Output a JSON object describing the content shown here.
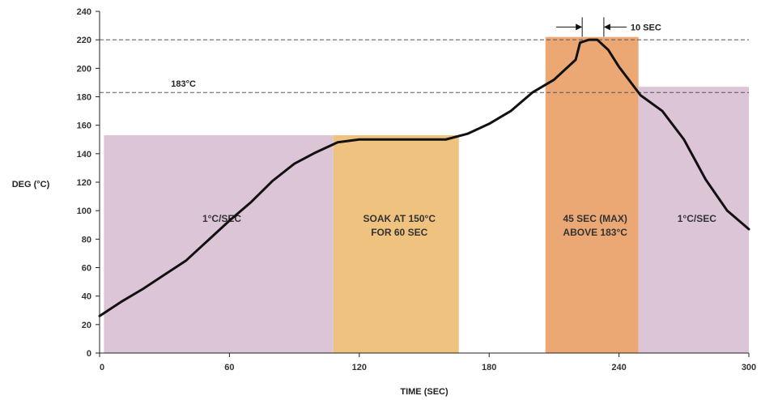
{
  "chart_data": {
    "type": "line",
    "title": "",
    "xlabel": "TIME (SEC)",
    "ylabel": "DEG (°C)",
    "xlim": [
      0,
      300
    ],
    "ylim": [
      0,
      240
    ],
    "x_ticks": [
      0,
      60,
      120,
      180,
      240,
      300
    ],
    "y_ticks": [
      0,
      20,
      40,
      60,
      80,
      100,
      120,
      140,
      160,
      180,
      200,
      220,
      240
    ],
    "grid": false,
    "legend": "none",
    "series": [
      {
        "x": [
          0,
          10,
          20,
          30,
          40,
          50,
          60,
          70,
          80,
          90,
          100,
          110,
          120,
          130,
          140,
          150,
          160,
          170,
          180,
          190,
          200,
          210,
          220,
          222,
          226,
          230,
          235,
          240,
          250,
          260,
          270,
          280,
          290,
          300
        ],
        "values": [
          26,
          36,
          45,
          55,
          65,
          79,
          93,
          106,
          121,
          133,
          141,
          148,
          150,
          150,
          150,
          150,
          150,
          154,
          161,
          170,
          183,
          192,
          206,
          218,
          220,
          220,
          213,
          201,
          181,
          170,
          150,
          122,
          100,
          87
        ]
      }
    ],
    "regions": [
      {
        "x0": 2,
        "x1": 108,
        "y0": 0,
        "y1": 153,
        "color": "#dcc5d6",
        "label_lines": [
          "1°C/SEC"
        ]
      },
      {
        "x0": 108,
        "x1": 166,
        "y0": 0,
        "y1": 153,
        "color": "#efc27f",
        "label_lines": [
          "SOAK AT 150°C",
          "FOR 60 SEC"
        ]
      },
      {
        "x0": 206,
        "x1": 249,
        "y0": 0,
        "y1": 222,
        "color": "#eca874",
        "label_lines": [
          "45 SEC (MAX)",
          "ABOVE 183°C"
        ]
      },
      {
        "x0": 249,
        "x1": 300,
        "y0": 0,
        "y1": 187,
        "color": "#dcc5d6",
        "label_lines": [
          "1°C/SEC"
        ]
      }
    ],
    "reference_lines": [
      {
        "y": 220,
        "label": ""
      },
      {
        "y": 183,
        "label": "183°C"
      }
    ],
    "annotations": [
      {
        "text": "10 SEC",
        "x_start": 223,
        "x_end": 233,
        "y": 229
      }
    ]
  }
}
